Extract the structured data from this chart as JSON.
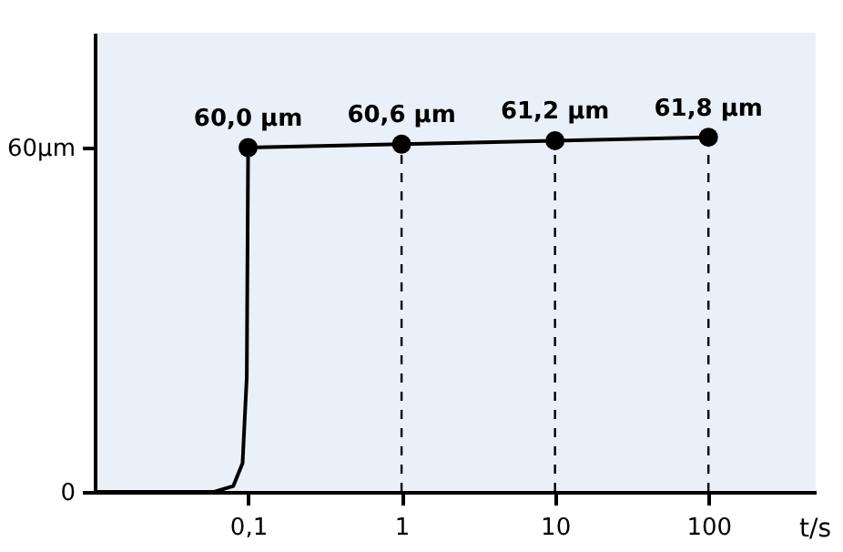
{
  "chart_data": {
    "type": "line",
    "xlabel": "t/s",
    "series": [
      {
        "color": "#000000",
        "marker": "none",
        "x": [
          0.01,
          0.06,
          0.08,
          0.092,
          0.098,
          0.1
        ],
        "values": [
          0,
          0,
          1,
          5,
          20,
          60
        ]
      },
      {
        "color": "#000000",
        "marker": "circle",
        "x": [
          0.1,
          1,
          10,
          100
        ],
        "values": [
          60.0,
          60.6,
          61.2,
          61.8
        ],
        "value_labels": [
          "60,0 µm",
          "60,6 µm",
          "61,2 µm",
          "61,8 µm"
        ]
      }
    ],
    "log": "x",
    "xlim": [
      0.01,
      500
    ],
    "ylim": [
      0,
      80
    ],
    "xticks": [
      {
        "value": 0.1,
        "label": "0,1"
      },
      1,
      10,
      100
    ],
    "yticks": [
      0,
      {
        "value": 60,
        "label": "60µm"
      }
    ],
    "ref_lines": [
      {
        "axis": "x",
        "value": 1,
        "color": "#000000",
        "line_style": "dashed"
      },
      {
        "axis": "x",
        "value": 10,
        "color": "#000000",
        "line_style": "dashed"
      },
      {
        "axis": "x",
        "value": 100,
        "color": "#000000",
        "line_style": "dashed"
      }
    ],
    "grid": false
  }
}
